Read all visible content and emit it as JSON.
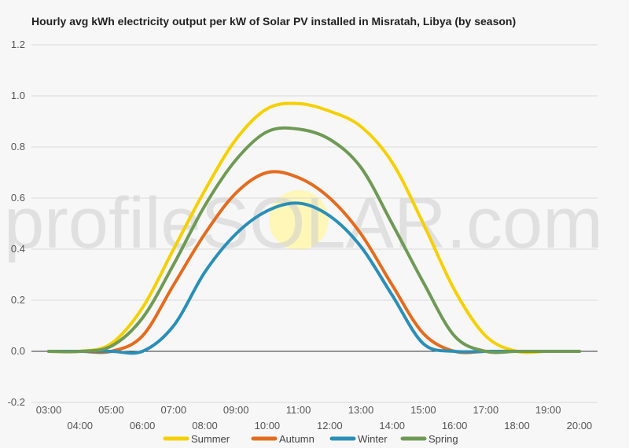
{
  "chart_data": {
    "type": "line",
    "title": "Hourly avg kWh electricity output per kW of Solar PV installed in Misratah, Libya (by season)",
    "xlabel": "",
    "ylabel": "",
    "ylim": [
      -0.2,
      1.2
    ],
    "yticks": [
      "-0.2",
      "0.0",
      "0.2",
      "0.4",
      "0.6",
      "0.8",
      "1.0",
      "1.2"
    ],
    "x": [
      "03:00",
      "04:00",
      "05:00",
      "06:00",
      "07:00",
      "08:00",
      "09:00",
      "10:00",
      "11:00",
      "12:00",
      "13:00",
      "14:00",
      "15:00",
      "16:00",
      "17:00",
      "18:00",
      "19:00",
      "20:00"
    ],
    "grid": true,
    "legend": "bottom",
    "series": [
      {
        "name": "Summer",
        "color": "#f5d000",
        "values": [
          0.0,
          0.0,
          0.03,
          0.17,
          0.4,
          0.63,
          0.83,
          0.95,
          0.97,
          0.94,
          0.88,
          0.74,
          0.5,
          0.24,
          0.06,
          0.0,
          0.0,
          0.0
        ]
      },
      {
        "name": "Autumn",
        "color": "#e36c1f",
        "values": [
          0.0,
          0.0,
          0.0,
          0.06,
          0.26,
          0.46,
          0.62,
          0.7,
          0.68,
          0.6,
          0.46,
          0.26,
          0.07,
          0.0,
          0.0,
          0.0,
          0.0,
          0.0
        ]
      },
      {
        "name": "Winter",
        "color": "#2a8fb8",
        "values": [
          0.0,
          0.0,
          0.0,
          0.0,
          0.1,
          0.31,
          0.46,
          0.55,
          0.58,
          0.53,
          0.41,
          0.22,
          0.03,
          0.0,
          0.0,
          0.0,
          0.0,
          0.0
        ]
      },
      {
        "name": "Spring",
        "color": "#6f9a55",
        "values": [
          0.0,
          0.0,
          0.02,
          0.13,
          0.34,
          0.57,
          0.75,
          0.86,
          0.87,
          0.83,
          0.72,
          0.5,
          0.27,
          0.06,
          0.0,
          0.0,
          0.0,
          0.0
        ]
      }
    ]
  },
  "watermark": {
    "text": "profileSOLAR.com"
  }
}
